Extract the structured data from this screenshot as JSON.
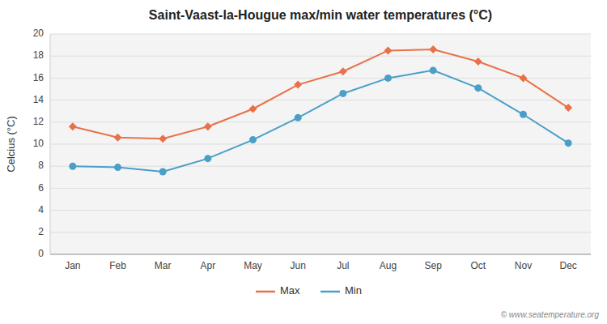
{
  "chart_data": {
    "type": "line",
    "title": "Saint-Vaast-la-Hougue max/min water temperatures (°C)",
    "y_label": "Celcius (°C)",
    "categories": [
      "Jan",
      "Feb",
      "Mar",
      "Apr",
      "May",
      "Jun",
      "Jul",
      "Aug",
      "Sep",
      "Oct",
      "Nov",
      "Dec"
    ],
    "series": [
      {
        "name": "Max",
        "color": "#e8714a",
        "marker": "diamond",
        "values": [
          11.6,
          10.6,
          10.5,
          11.6,
          13.2,
          15.4,
          16.6,
          18.5,
          18.6,
          17.5,
          16.0,
          13.3
        ]
      },
      {
        "name": "Min",
        "color": "#4a9fc8",
        "marker": "circle",
        "values": [
          8.0,
          7.9,
          7.5,
          8.7,
          10.4,
          12.4,
          14.6,
          16.0,
          16.7,
          15.1,
          12.7,
          10.1
        ]
      }
    ],
    "ylim": [
      0,
      20
    ],
    "yticks": [
      0,
      2,
      4,
      6,
      8,
      10,
      12,
      14,
      16,
      18,
      20
    ],
    "grid": true,
    "legend": "bottom",
    "annotations": [
      "© www.seatemperature.org"
    ]
  }
}
